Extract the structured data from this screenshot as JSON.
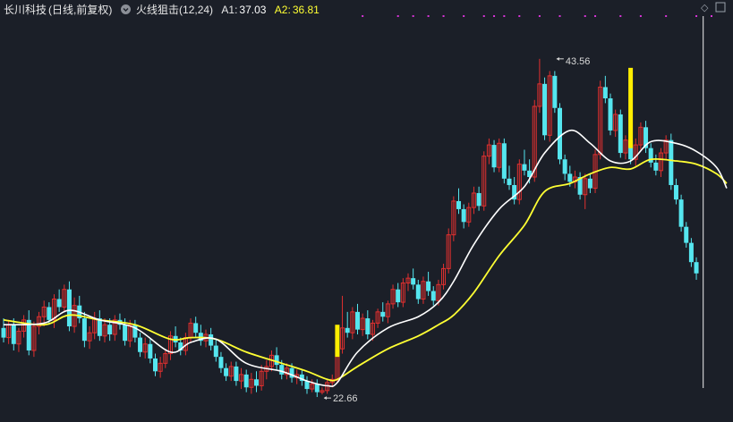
{
  "header": {
    "stock_name": "长川科技",
    "period": "(日线,前复权)",
    "indicator_name": "火线狙击(12,24)",
    "a1_label": "A1:",
    "a1_value": "37.03",
    "a2_label": "A2:",
    "a2_value": "36.81",
    "indicator_icon": "chevron-down-circle-icon",
    "corner_icons": [
      "diamond-icon",
      "expand-icon"
    ]
  },
  "colors": {
    "background": "#1b1f28",
    "up_candle": "#e2302f",
    "down_candle": "#55e6ef",
    "a1_line": "#ffffff",
    "a2_line": "#ffff33",
    "signal_bar": "#ffee00",
    "signal_dot": "#d633d6",
    "annotation": "#d8d8d8",
    "cursor_line": "#f0f0f0"
  },
  "chart_data": {
    "type": "candlestick",
    "price_range": [
      21.5,
      46.0
    ],
    "series": [
      {
        "name": "A1",
        "value": 37.03
      },
      {
        "name": "A2",
        "value": 36.81
      }
    ],
    "candles": [
      [
        26.8,
        27.4,
        25.9,
        26.2
      ],
      [
        26.2,
        27.3,
        25.8,
        27.0
      ],
      [
        27.0,
        27.4,
        25.4,
        25.8
      ],
      [
        25.8,
        26.8,
        25.3,
        26.6
      ],
      [
        26.6,
        27.6,
        26.2,
        27.3
      ],
      [
        27.3,
        27.9,
        25.1,
        25.4
      ],
      [
        25.4,
        27.2,
        25.0,
        26.9
      ],
      [
        26.9,
        27.8,
        26.4,
        27.5
      ],
      [
        27.5,
        28.5,
        26.9,
        28.1
      ],
      [
        28.1,
        28.4,
        27.0,
        27.3
      ],
      [
        27.3,
        28.9,
        26.8,
        28.6
      ],
      [
        28.6,
        29.2,
        27.8,
        28.1
      ],
      [
        28.1,
        29.5,
        27.8,
        29.2
      ],
      [
        29.2,
        29.7,
        26.6,
        26.9
      ],
      [
        26.9,
        28.7,
        26.5,
        28.2
      ],
      [
        28.2,
        28.8,
        27.1,
        27.4
      ],
      [
        27.4,
        27.8,
        25.6,
        26.0
      ],
      [
        26.0,
        26.9,
        25.5,
        26.5
      ],
      [
        26.5,
        27.8,
        26.1,
        27.4
      ],
      [
        27.4,
        27.9,
        26.0,
        26.3
      ],
      [
        26.3,
        27.4,
        25.9,
        27.0
      ],
      [
        27.0,
        27.4,
        26.0,
        26.4
      ],
      [
        26.4,
        27.6,
        26.0,
        27.3
      ],
      [
        27.3,
        27.7,
        26.7,
        27.0
      ],
      [
        27.0,
        27.4,
        25.7,
        26.0
      ],
      [
        26.0,
        27.3,
        25.6,
        27.0
      ],
      [
        27.0,
        27.3,
        25.9,
        26.2
      ],
      [
        26.2,
        26.5,
        25.0,
        25.3
      ],
      [
        25.3,
        26.2,
        24.9,
        25.8
      ],
      [
        25.8,
        26.1,
        24.6,
        24.9
      ],
      [
        24.9,
        25.2,
        23.8,
        24.1
      ],
      [
        24.1,
        25.0,
        23.7,
        24.6
      ],
      [
        24.6,
        25.5,
        24.3,
        25.2
      ],
      [
        25.2,
        26.6,
        24.8,
        26.3
      ],
      [
        26.3,
        26.9,
        25.6,
        25.9
      ],
      [
        25.9,
        26.2,
        25.1,
        25.4
      ],
      [
        25.4,
        26.5,
        25.1,
        26.2
      ],
      [
        26.2,
        27.4,
        25.9,
        27.1
      ],
      [
        27.1,
        27.5,
        26.2,
        26.5
      ],
      [
        26.5,
        27.0,
        25.7,
        26.0
      ],
      [
        26.0,
        26.7,
        25.6,
        26.4
      ],
      [
        26.4,
        26.8,
        25.4,
        25.7
      ],
      [
        25.7,
        26.1,
        24.7,
        25.0
      ],
      [
        25.0,
        25.3,
        24.0,
        24.3
      ],
      [
        24.3,
        24.6,
        23.5,
        23.8
      ],
      [
        23.8,
        24.7,
        23.5,
        24.4
      ],
      [
        24.4,
        24.7,
        23.2,
        23.5
      ],
      [
        23.5,
        24.3,
        23.0,
        23.9
      ],
      [
        23.9,
        24.2,
        22.8,
        23.1
      ],
      [
        23.1,
        24.0,
        22.7,
        23.6
      ],
      [
        23.6,
        24.1,
        22.8,
        23.2
      ],
      [
        23.2,
        24.5,
        22.9,
        24.1
      ],
      [
        24.1,
        24.8,
        23.6,
        24.4
      ],
      [
        24.4,
        25.4,
        24.1,
        25.1
      ],
      [
        25.1,
        25.6,
        24.2,
        24.5
      ],
      [
        24.5,
        24.8,
        23.6,
        23.9
      ],
      [
        23.9,
        24.6,
        23.6,
        24.3
      ],
      [
        24.3,
        24.6,
        23.4,
        23.7
      ],
      [
        23.7,
        24.2,
        23.3,
        23.9
      ],
      [
        23.9,
        24.2,
        23.2,
        23.5
      ],
      [
        23.5,
        23.8,
        22.7,
        23.0
      ],
      [
        23.0,
        23.6,
        22.8,
        23.3
      ],
      [
        23.3,
        23.6,
        22.5,
        22.8
      ],
      [
        22.8,
        23.1,
        22.66,
        22.9
      ],
      [
        22.9,
        23.6,
        22.7,
        23.4
      ],
      [
        23.4,
        23.9,
        23.1,
        23.6
      ],
      [
        23.6,
        25.7,
        23.4,
        25.5
      ],
      [
        25.5,
        28.8,
        25.2,
        26.8
      ],
      [
        26.8,
        27.8,
        26.2,
        26.5
      ],
      [
        26.5,
        28.1,
        26.1,
        27.8
      ],
      [
        27.8,
        28.3,
        26.4,
        26.7
      ],
      [
        26.7,
        27.7,
        26.3,
        27.4
      ],
      [
        27.4,
        27.9,
        26.1,
        26.4
      ],
      [
        26.4,
        27.3,
        26.0,
        27.1
      ],
      [
        27.1,
        28.0,
        26.8,
        27.8
      ],
      [
        27.8,
        28.4,
        27.2,
        27.5
      ],
      [
        27.5,
        28.5,
        27.1,
        28.3
      ],
      [
        28.3,
        29.5,
        28.0,
        29.2
      ],
      [
        29.2,
        29.6,
        28.1,
        28.4
      ],
      [
        28.4,
        29.9,
        28.1,
        29.6
      ],
      [
        29.6,
        30.2,
        29.1,
        29.9
      ],
      [
        29.9,
        30.5,
        29.2,
        29.5
      ],
      [
        29.5,
        29.8,
        28.3,
        28.6
      ],
      [
        28.6,
        30.0,
        28.3,
        29.7
      ],
      [
        29.7,
        30.3,
        28.8,
        29.1
      ],
      [
        29.1,
        29.4,
        28.2,
        28.5
      ],
      [
        28.5,
        29.8,
        28.2,
        29.5
      ],
      [
        29.5,
        30.8,
        29.2,
        30.5
      ],
      [
        30.5,
        33.0,
        30.2,
        32.6
      ],
      [
        32.6,
        35.0,
        32.2,
        34.7
      ],
      [
        34.7,
        35.5,
        33.9,
        34.2
      ],
      [
        34.2,
        34.5,
        33.0,
        33.4
      ],
      [
        33.4,
        34.6,
        33.1,
        34.3
      ],
      [
        34.3,
        35.6,
        33.9,
        35.2
      ],
      [
        35.2,
        35.6,
        34.1,
        34.4
      ],
      [
        34.4,
        37.8,
        34.1,
        37.5
      ],
      [
        37.5,
        38.6,
        37.0,
        38.2
      ],
      [
        38.2,
        38.5,
        36.5,
        36.8
      ],
      [
        36.8,
        38.6,
        36.5,
        38.3
      ],
      [
        38.3,
        38.6,
        35.8,
        36.1
      ],
      [
        36.1,
        36.9,
        35.4,
        35.7
      ],
      [
        35.7,
        36.2,
        34.5,
        34.8
      ],
      [
        34.8,
        37.3,
        34.5,
        37.0
      ],
      [
        37.0,
        37.9,
        36.3,
        36.6
      ],
      [
        36.6,
        37.3,
        35.8,
        36.2
      ],
      [
        36.2,
        41.0,
        35.9,
        40.6
      ],
      [
        40.6,
        43.56,
        40.2,
        42.0
      ],
      [
        42.0,
        42.4,
        38.5,
        38.8
      ],
      [
        38.8,
        42.8,
        38.4,
        42.5
      ],
      [
        42.5,
        42.8,
        40.2,
        40.5
      ],
      [
        40.5,
        40.8,
        37.0,
        37.3
      ],
      [
        37.3,
        37.6,
        36.0,
        36.4
      ],
      [
        36.4,
        36.9,
        35.6,
        35.9
      ],
      [
        35.9,
        36.6,
        35.5,
        36.2
      ],
      [
        36.2,
        36.5,
        34.8,
        35.1
      ],
      [
        35.1,
        36.4,
        34.2,
        36.1
      ],
      [
        36.1,
        36.4,
        35.2,
        35.5
      ],
      [
        35.5,
        37.9,
        35.2,
        37.6
      ],
      [
        37.6,
        42.2,
        37.3,
        41.8
      ],
      [
        41.8,
        42.5,
        40.8,
        41.1
      ],
      [
        41.1,
        41.4,
        38.8,
        39.1
      ],
      [
        39.1,
        40.4,
        38.7,
        40.1
      ],
      [
        40.1,
        40.4,
        37.4,
        37.7
      ],
      [
        37.7,
        38.8,
        37.3,
        38.5
      ],
      [
        38.5,
        38.8,
        37.0,
        37.3
      ],
      [
        37.3,
        38.6,
        36.9,
        38.2
      ],
      [
        38.2,
        39.6,
        37.9,
        39.3
      ],
      [
        39.3,
        39.7,
        37.7,
        38.0
      ],
      [
        38.0,
        38.3,
        36.8,
        37.1
      ],
      [
        37.1,
        37.6,
        36.3,
        36.6
      ],
      [
        36.6,
        38.0,
        36.2,
        37.7
      ],
      [
        37.7,
        38.8,
        37.3,
        38.5
      ],
      [
        38.5,
        38.9,
        35.4,
        35.7
      ],
      [
        35.7,
        36.1,
        34.5,
        34.8
      ],
      [
        34.8,
        35.1,
        32.8,
        33.1
      ],
      [
        33.1,
        33.4,
        31.8,
        32.1
      ],
      [
        32.1,
        32.4,
        30.6,
        30.9
      ],
      [
        30.9,
        31.2,
        29.8,
        30.2
      ]
    ],
    "a1_points": [
      [
        0,
        27.0
      ],
      [
        8,
        27.1
      ],
      [
        13,
        27.9
      ],
      [
        19,
        27.3
      ],
      [
        26,
        26.8
      ],
      [
        33,
        25.3
      ],
      [
        37,
        25.9
      ],
      [
        42,
        26.1
      ],
      [
        48,
        24.6
      ],
      [
        55,
        24.1
      ],
      [
        60,
        23.5
      ],
      [
        64,
        23.2
      ],
      [
        66,
        23.4
      ],
      [
        70,
        25.3
      ],
      [
        76,
        26.8
      ],
      [
        82,
        27.5
      ],
      [
        86,
        28.4
      ],
      [
        89,
        29.7
      ],
      [
        93,
        32.0
      ],
      [
        98,
        34.2
      ],
      [
        103,
        35.6
      ],
      [
        107,
        37.7
      ],
      [
        112,
        39.1
      ],
      [
        116,
        38.3
      ],
      [
        120,
        37.2
      ],
      [
        124,
        37.2
      ],
      [
        128,
        38.4
      ],
      [
        133,
        38.3
      ],
      [
        137,
        37.8
      ],
      [
        141,
        36.8
      ],
      [
        143,
        35.5
      ]
    ],
    "a2_points": [
      [
        0,
        27.3
      ],
      [
        8,
        27.0
      ],
      [
        13,
        27.6
      ],
      [
        19,
        27.3
      ],
      [
        26,
        27.0
      ],
      [
        33,
        26.1
      ],
      [
        37,
        26.2
      ],
      [
        42,
        26.1
      ],
      [
        48,
        25.3
      ],
      [
        55,
        24.6
      ],
      [
        60,
        24.1
      ],
      [
        64,
        23.6
      ],
      [
        66,
        23.6
      ],
      [
        70,
        24.4
      ],
      [
        76,
        25.5
      ],
      [
        82,
        26.3
      ],
      [
        86,
        27.0
      ],
      [
        89,
        27.6
      ],
      [
        93,
        29.0
      ],
      [
        98,
        31.3
      ],
      [
        103,
        33.2
      ],
      [
        107,
        35.3
      ],
      [
        112,
        35.8
      ],
      [
        116,
        36.4
      ],
      [
        120,
        36.8
      ],
      [
        124,
        36.7
      ],
      [
        128,
        37.3
      ],
      [
        133,
        37.2
      ],
      [
        137,
        37.0
      ],
      [
        141,
        36.4
      ],
      [
        143,
        35.8
      ]
    ],
    "signal_bars": [
      [
        66,
        25.0,
        27.0
      ],
      [
        124,
        38.0,
        43.0
      ]
    ],
    "signal_dot_positions": [
      71,
      78,
      81,
      84,
      87,
      91,
      95,
      97,
      99,
      102,
      106,
      110,
      115,
      117,
      122,
      126,
      131,
      137,
      140
    ],
    "annotations": [
      {
        "text": "43.56",
        "index": 109,
        "price": 43.56,
        "side": "above"
      },
      {
        "text": "22.66",
        "index": 63,
        "price": 22.66,
        "side": "below"
      }
    ],
    "cursor_index": 138
  }
}
